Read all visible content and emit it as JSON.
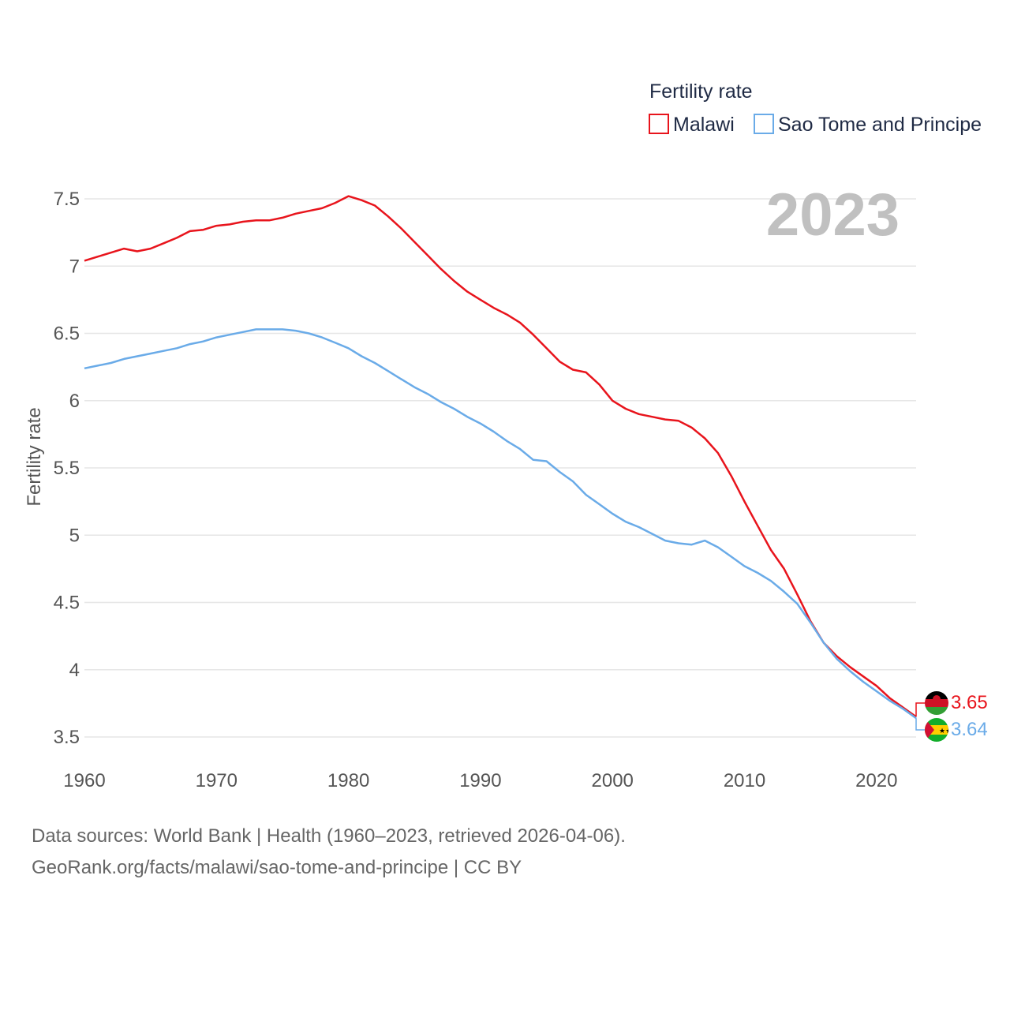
{
  "colors": {
    "malawi": "#e8141c",
    "sao_tome": "#6aabe8",
    "grid": "#e6e6e6",
    "year_label": "#c0c0c0"
  },
  "chart_data": {
    "type": "line",
    "title": "",
    "year_label": "2023",
    "legend_title": "Fertility rate",
    "legend_position": "top-right",
    "xlabel": "",
    "ylabel": "Fertility rate",
    "xlim": [
      1960,
      2023
    ],
    "ylim": [
      3.5,
      7.5
    ],
    "xticks": [
      1960,
      1970,
      1980,
      1990,
      2000,
      2010,
      2020
    ],
    "yticks": [
      3.5,
      4,
      4.5,
      5,
      5.5,
      6,
      6.5,
      7,
      7.5
    ],
    "x": [
      1960,
      1961,
      1962,
      1963,
      1964,
      1965,
      1966,
      1967,
      1968,
      1969,
      1970,
      1971,
      1972,
      1973,
      1974,
      1975,
      1976,
      1977,
      1978,
      1979,
      1980,
      1981,
      1982,
      1983,
      1984,
      1985,
      1986,
      1987,
      1988,
      1989,
      1990,
      1991,
      1992,
      1993,
      1994,
      1995,
      1996,
      1997,
      1998,
      1999,
      2000,
      2001,
      2002,
      2003,
      2004,
      2005,
      2006,
      2007,
      2008,
      2009,
      2010,
      2011,
      2012,
      2013,
      2014,
      2015,
      2016,
      2017,
      2018,
      2019,
      2020,
      2021,
      2022,
      2023
    ],
    "series": [
      {
        "name": "Malawi",
        "color_key": "malawi",
        "end_label": "3.65",
        "flag": "malawi-flag",
        "values": [
          7.04,
          7.07,
          7.1,
          7.13,
          7.11,
          7.13,
          7.17,
          7.21,
          7.26,
          7.27,
          7.3,
          7.31,
          7.33,
          7.34,
          7.34,
          7.36,
          7.39,
          7.41,
          7.43,
          7.47,
          7.52,
          7.49,
          7.45,
          7.37,
          7.28,
          7.18,
          7.08,
          6.98,
          6.89,
          6.81,
          6.75,
          6.69,
          6.64,
          6.58,
          6.49,
          6.39,
          6.29,
          6.23,
          6.21,
          6.12,
          6.0,
          5.94,
          5.9,
          5.88,
          5.86,
          5.85,
          5.8,
          5.72,
          5.61,
          5.44,
          5.25,
          5.07,
          4.89,
          4.75,
          4.56,
          4.36,
          4.2,
          4.1,
          4.02,
          3.95,
          3.88,
          3.79,
          3.72,
          3.65
        ]
      },
      {
        "name": "Sao Tome and Principe",
        "color_key": "sao_tome",
        "end_label": "3.64",
        "flag": "sao-tome-and-principe-flag",
        "values": [
          6.24,
          6.26,
          6.28,
          6.31,
          6.33,
          6.35,
          6.37,
          6.39,
          6.42,
          6.44,
          6.47,
          6.49,
          6.51,
          6.53,
          6.53,
          6.53,
          6.52,
          6.5,
          6.47,
          6.43,
          6.39,
          6.33,
          6.28,
          6.22,
          6.16,
          6.1,
          6.05,
          5.99,
          5.94,
          5.88,
          5.83,
          5.77,
          5.7,
          5.64,
          5.56,
          5.55,
          5.47,
          5.4,
          5.3,
          5.23,
          5.16,
          5.1,
          5.06,
          5.01,
          4.96,
          4.94,
          4.93,
          4.96,
          4.91,
          4.84,
          4.77,
          4.72,
          4.66,
          4.58,
          4.49,
          4.35,
          4.2,
          4.08,
          3.99,
          3.91,
          3.84,
          3.77,
          3.71,
          3.64
        ]
      }
    ]
  },
  "footer": {
    "sources": "Data sources: World Bank | Health (1960–2023, retrieved 2026-04-06).",
    "link": "GeoRank.org/facts/malawi/sao-tome-and-principe | CC BY"
  }
}
